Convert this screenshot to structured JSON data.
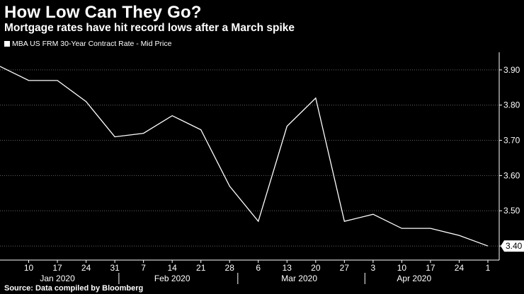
{
  "header": {
    "title": "How Low Can They Go?",
    "subtitle": "Mortgage rates have hit record lows after a March spike"
  },
  "legend": {
    "series_label": "MBA US FRM 30-Year Contract Rate - Mid Price"
  },
  "footer": {
    "source": "Source: Data compiled by Bloomberg"
  },
  "colors": {
    "background": "#000000",
    "line": "#ffffff",
    "grid": "#666666",
    "label_box": "#ffffff",
    "label_text": "#000000"
  },
  "chart_data": {
    "type": "line",
    "title": "How Low Can They Go?",
    "subtitle": "Mortgage rates have hit record lows after a March spike",
    "x": [
      "2020-01-03",
      "2020-01-10",
      "2020-01-17",
      "2020-01-24",
      "2020-01-31",
      "2020-02-07",
      "2020-02-14",
      "2020-02-21",
      "2020-02-28",
      "2020-03-06",
      "2020-03-13",
      "2020-03-20",
      "2020-03-27",
      "2020-04-03",
      "2020-04-10",
      "2020-04-17",
      "2020-04-24",
      "2020-05-01"
    ],
    "series": [
      {
        "name": "MBA US FRM 30-Year Contract Rate - Mid Price",
        "values": [
          3.91,
          3.87,
          3.87,
          3.81,
          3.71,
          3.72,
          3.77,
          3.73,
          3.57,
          3.47,
          3.74,
          3.82,
          3.47,
          3.49,
          3.45,
          3.45,
          3.43,
          3.4
        ]
      }
    ],
    "x_tick_labels": [
      "10",
      "17",
      "24",
      "31",
      "7",
      "14",
      "21",
      "28",
      "6",
      "13",
      "20",
      "27",
      "3",
      "10",
      "17",
      "24",
      "1"
    ],
    "x_tick_dates": [
      "2020-01-10",
      "2020-01-17",
      "2020-01-24",
      "2020-01-31",
      "2020-02-07",
      "2020-02-14",
      "2020-02-21",
      "2020-02-28",
      "2020-03-06",
      "2020-03-13",
      "2020-03-20",
      "2020-03-27",
      "2020-04-03",
      "2020-04-10",
      "2020-04-17",
      "2020-04-24",
      "2020-05-01"
    ],
    "month_labels": [
      {
        "label": "Jan 2020",
        "date": "2020-01-17"
      },
      {
        "label": "Feb 2020",
        "date": "2020-02-14"
      },
      {
        "label": "Mar 2020",
        "date": "2020-03-16"
      },
      {
        "label": "Apr 2020",
        "date": "2020-04-13"
      }
    ],
    "y_ticks": [
      "3.40",
      "3.50",
      "3.60",
      "3.70",
      "3.80",
      "3.90"
    ],
    "ylim": [
      3.36,
      3.95
    ],
    "last_value_label": "3.40",
    "y_axis_position": "right",
    "grid": "horizontal dotted",
    "xlabel": "",
    "ylabel": ""
  }
}
